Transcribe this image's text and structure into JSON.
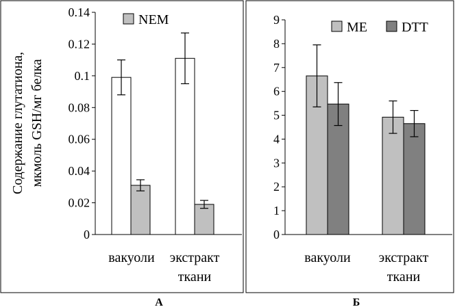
{
  "chart_data": [
    {
      "type": "bar",
      "panel_label": "А",
      "ylabel_lines": [
        "Содержание глутатиона,",
        "мкмоль GSH/мг белка"
      ],
      "categories": [
        [
          "вакуоли"
        ],
        [
          "экстракт",
          "ткани"
        ]
      ],
      "ylim": [
        0,
        0.14
      ],
      "yticks": [
        "0",
        "0.02",
        "0.04",
        "0.06",
        "0.08",
        "0.1",
        "0.12",
        "0.14"
      ],
      "ytick_values": [
        0,
        0.02,
        0.04,
        0.06,
        0.08,
        0.1,
        0.12,
        0.14
      ],
      "grid": false,
      "legend_position": "top-center",
      "series": [
        {
          "name": "",
          "color": "#ffffff",
          "values": [
            0.099,
            0.111
          ],
          "errors": [
            0.011,
            0.016
          ],
          "in_legend": false
        },
        {
          "name": "NEM",
          "color": "#c0c0c0",
          "values": [
            0.031,
            0.019
          ],
          "errors": [
            0.0035,
            0.0025
          ],
          "in_legend": true
        }
      ]
    },
    {
      "type": "bar",
      "panel_label": "Б",
      "ylabel_lines": [],
      "categories": [
        [
          "вакуоли"
        ],
        [
          "экстракт",
          "ткани"
        ]
      ],
      "ylim": [
        0,
        9
      ],
      "yticks": [
        "0",
        "1",
        "2",
        "3",
        "4",
        "5",
        "6",
        "7",
        "8",
        "9"
      ],
      "ytick_values": [
        0,
        1,
        2,
        3,
        4,
        5,
        6,
        7,
        8,
        9
      ],
      "grid": false,
      "legend_position": "top",
      "series": [
        {
          "name": "ME",
          "color": "#c0c0c0",
          "values": [
            6.65,
            4.92
          ],
          "errors": [
            1.3,
            0.68
          ],
          "in_legend": true
        },
        {
          "name": "DTT",
          "color": "#808080",
          "values": [
            5.47,
            4.65
          ],
          "errors": [
            0.9,
            0.55
          ],
          "in_legend": true
        }
      ]
    }
  ]
}
